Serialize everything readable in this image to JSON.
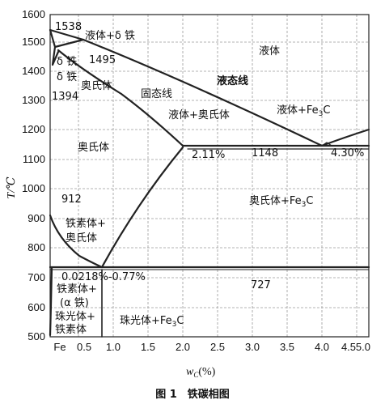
{
  "caption": "图 1　铁碳相图",
  "axes": {
    "x_label_main": "w",
    "x_label_sub": "C",
    "x_label_tail": "(%)",
    "y_label": "T/℃",
    "x_origin_label": "Fe",
    "x_ticks": [
      "0.5",
      "1.0",
      "1.5",
      "2.0",
      "2.5",
      "3.0",
      "3.5",
      "4.0",
      "4.5",
      "5.0"
    ],
    "y_ticks": [
      "500",
      "600",
      "700",
      "800",
      "900",
      "1000",
      "1100",
      "1200",
      "1300",
      "1400",
      "1500",
      "1600"
    ]
  },
  "labels": {
    "t1538": "1538",
    "liquid_delta": "液体+δ 铁",
    "liquid": "液体",
    "t1495": "1495",
    "delta_iron": "δ 铁",
    "delta_iron2": "δ 铁",
    "austenite_top": "奥氏体",
    "t1394": "1394",
    "solidus": "固态线",
    "liquidus": "液态线",
    "liquid_austenite": "液体+奥氏体",
    "liquid_fe3c_a": "液体+Fe",
    "liquid_fe3c_sub": "3",
    "liquid_fe3c_b": "C",
    "austenite": "奥氏体",
    "c211": "2.11%",
    "t1148": "1148",
    "c430": "4.30%",
    "t912": "912",
    "aus_fe3c_a": "奥氏体+Fe",
    "aus_fe3c_sub": "3",
    "aus_fe3c_b": "C",
    "ferrite_aus_1": "铁素体+",
    "ferrite_aus_2": "奥氏体",
    "c0218_077": "0.0218%-0.77%",
    "ferrite_alpha_1": "铁素体+",
    "ferrite_alpha_2": "(α 铁)",
    "t727": "727",
    "pearlite_ferrite_1": "珠光体+",
    "pearlite_ferrite_2": "铁素体",
    "pearlite_fe3c_a": "珠光体+Fe",
    "pearlite_fe3c_sub": "3",
    "pearlite_fe3c_b": "C"
  }
}
